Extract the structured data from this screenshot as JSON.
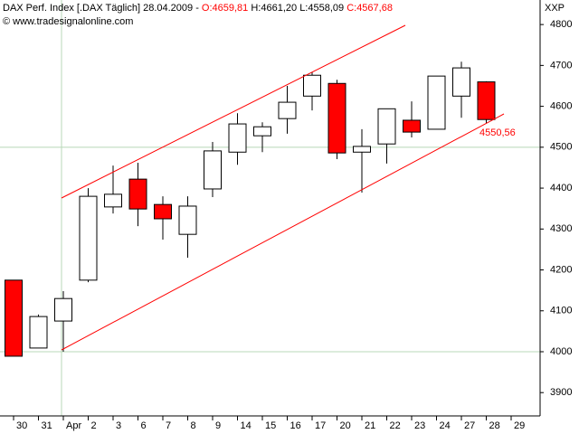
{
  "chart_data": {
    "type": "candlestick",
    "header": "DAX Perf. Index [.DAX  Täglich] 28.04.2009 -",
    "ohlc_labels": [
      "O:4659,81",
      "H:4661,20",
      "L:4558,09",
      "C:4567,68"
    ],
    "subtitle": "© www.tradesignalonline.com",
    "axis_label": "XXP",
    "annotation": "4550,56",
    "categories": [
      "30",
      "31",
      "Apr",
      "2",
      "3",
      "6",
      "7",
      "8",
      "9",
      "14",
      "15",
      "16",
      "17",
      "20",
      "21",
      "22",
      "23",
      "24",
      "27",
      "28",
      "29"
    ],
    "open": [
      4175,
      4009,
      4075,
      4175,
      4354,
      4422,
      4360,
      4287,
      4398,
      4488,
      4528,
      4570,
      4625,
      4656,
      4488,
      4508,
      4566,
      4544,
      4625,
      4659.81,
      null
    ],
    "high": [
      4175,
      4091,
      4148,
      4400,
      4455,
      4462,
      4380,
      4380,
      4513,
      4583,
      4561,
      4650,
      4683,
      4665,
      4544,
      4594,
      4612,
      4674,
      4709,
      4661.2,
      null
    ],
    "low": [
      3989,
      4009,
      4000,
      4170,
      4338,
      4307,
      4274,
      4230,
      4378,
      4457,
      4488,
      4533,
      4590,
      4471,
      4389,
      4460,
      4524,
      4544,
      4572,
      4558.09,
      null
    ],
    "close": [
      3989,
      4086,
      4130,
      4380,
      4385,
      4349,
      4325,
      4356,
      4491,
      4557,
      4550,
      4610,
      4676,
      4486,
      4502,
      4594,
      4537,
      4674,
      4694,
      4567.68,
      null
    ],
    "up_color": "#ffffff",
    "down_color": "#ff0000",
    "ylim": [
      3843,
      4860
    ],
    "yticks": [
      3900,
      4000,
      4100,
      4200,
      4300,
      4400,
      4500,
      4600,
      4700,
      4800
    ],
    "hlines": [
      4000,
      4500
    ]
  }
}
